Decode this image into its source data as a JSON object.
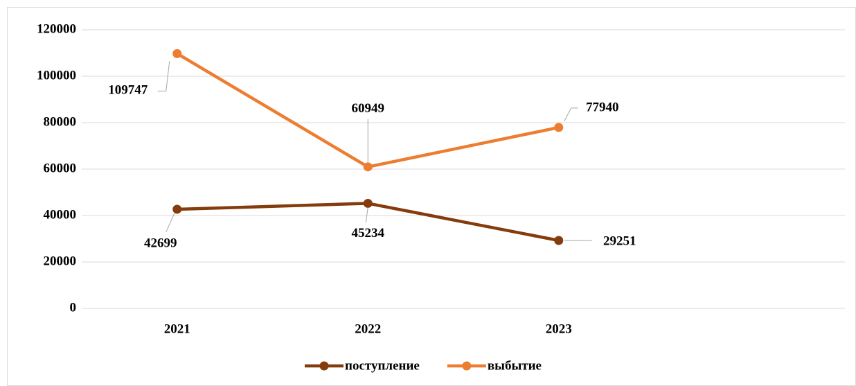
{
  "chart_data": {
    "type": "line",
    "categories": [
      "2021",
      "2022",
      "2023",
      null
    ],
    "series": [
      {
        "name": "поступление",
        "color": "#843c0c",
        "values": [
          42699,
          45234,
          29251,
          null
        ]
      },
      {
        "name": "выбытие",
        "color": "#ed7d31",
        "values": [
          109747,
          60949,
          77940,
          null
        ]
      }
    ],
    "ylim": [
      0,
      120000
    ],
    "yticks": [
      0,
      20000,
      40000,
      60000,
      80000,
      100000,
      120000
    ],
    "grid": true,
    "legend": "bottom"
  }
}
